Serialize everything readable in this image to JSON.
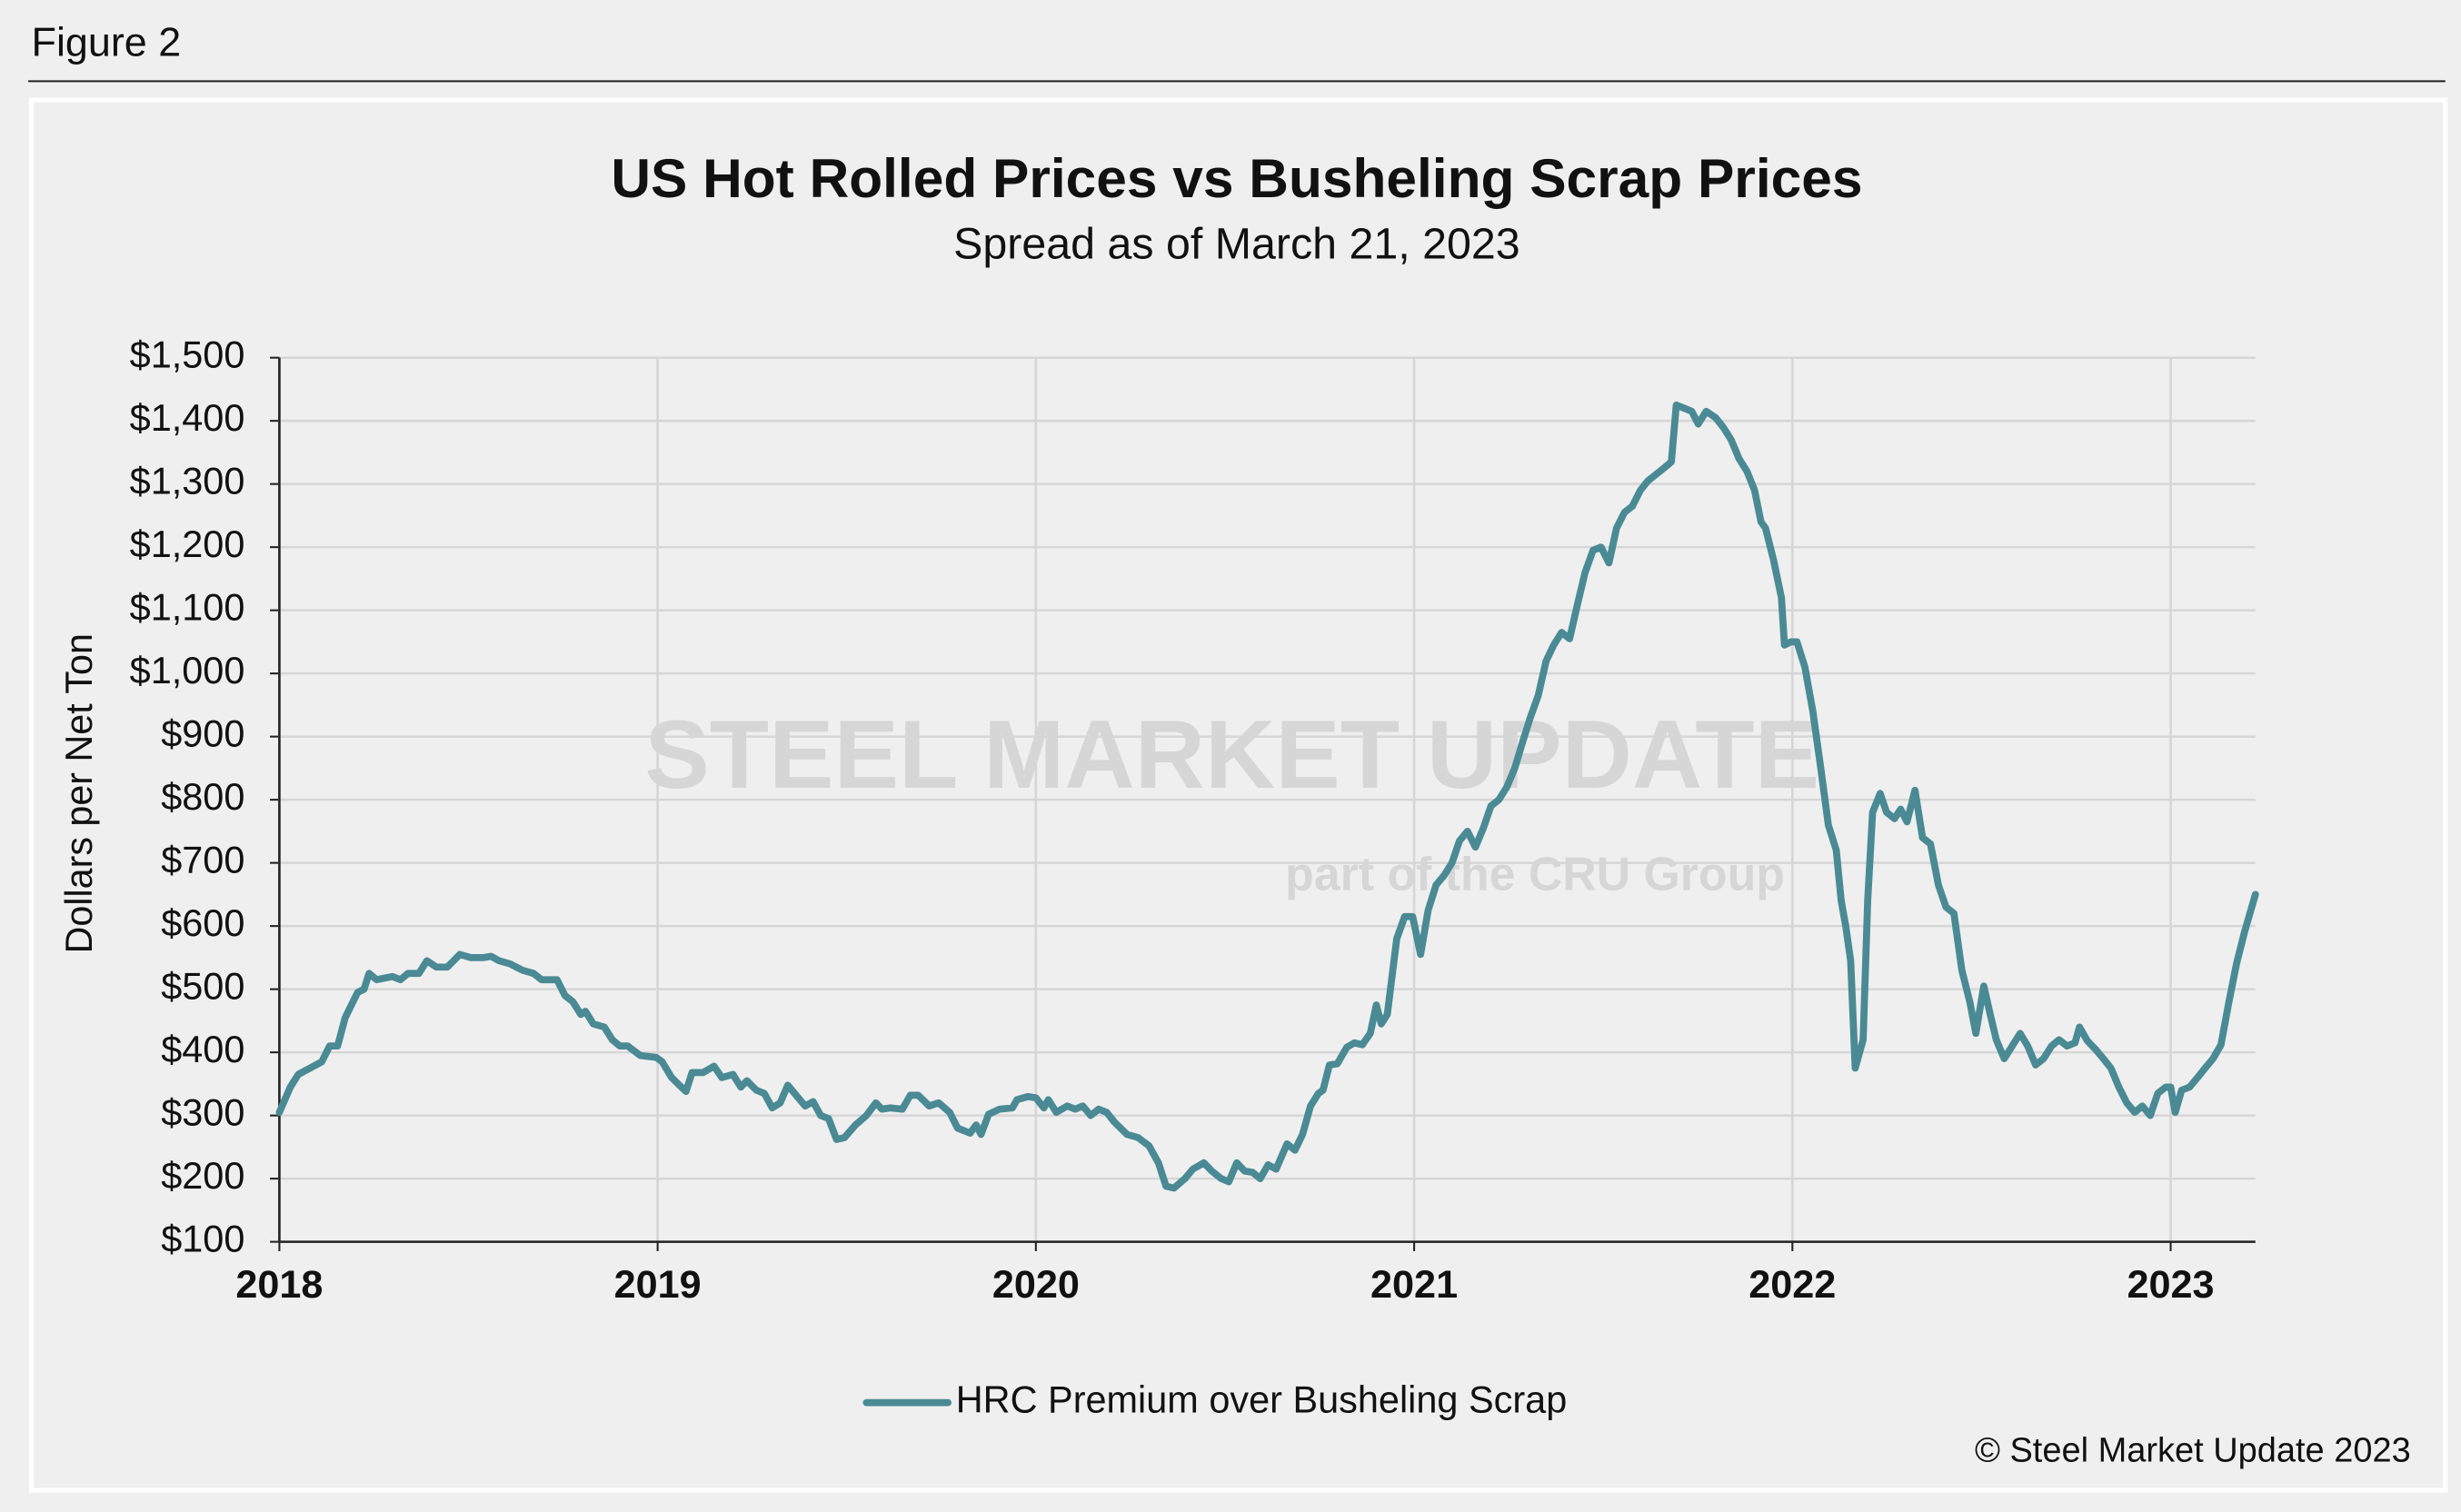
{
  "figure_label": "Figure 2",
  "copyright": "© Steel Market Update 2023",
  "watermark": {
    "brand": "STEEL MARKET UPDATE",
    "tagline": "part of the CRU Group"
  },
  "chart_data": {
    "type": "line",
    "title": "US Hot Rolled Prices vs Busheling Scrap Prices",
    "subtitle": "Spread as of March 21, 2023",
    "y_label": "Dollars per Net Ton",
    "xlim": [
      2018,
      2023.224
    ],
    "xticks": [
      2018,
      2019,
      2020,
      2021,
      2022,
      2023
    ],
    "ylim": [
      100,
      1500
    ],
    "yticks": [
      {
        "value": 100,
        "label": "$100"
      },
      {
        "value": 200,
        "label": "$200"
      },
      {
        "value": 300,
        "label": "$300"
      },
      {
        "value": 400,
        "label": "$400"
      },
      {
        "value": 500,
        "label": "$500"
      },
      {
        "value": 600,
        "label": "$600"
      },
      {
        "value": 700,
        "label": "$700"
      },
      {
        "value": 800,
        "label": "$800"
      },
      {
        "value": 900,
        "label": "$900"
      },
      {
        "value": 1000,
        "label": "$1,000"
      },
      {
        "value": 1100,
        "label": "$1,100"
      },
      {
        "value": 1200,
        "label": "$1,200"
      },
      {
        "value": 1300,
        "label": "$1,300"
      },
      {
        "value": 1400,
        "label": "$1,400"
      },
      {
        "value": 1500,
        "label": "$1,500"
      }
    ],
    "grid": true,
    "legend": "bottom",
    "x": [
      2018,
      2018.029,
      2018.05,
      2018.112,
      2018.133,
      2018.154,
      2018.174,
      2018.207,
      2018.224,
      2018.237,
      2018.257,
      2018.299,
      2018.32,
      2018.34,
      2018.369,
      2018.39,
      2018.415,
      2018.444,
      2018.477,
      2018.506,
      2018.539,
      2018.56,
      2018.581,
      2018.61,
      2018.643,
      2018.672,
      2018.693,
      2018.734,
      2018.755,
      2018.776,
      2018.797,
      2018.809,
      2018.83,
      2018.859,
      2018.88,
      2018.9,
      2018.921,
      2018.954,
      2018.996,
      2019.012,
      2019.037,
      2019.054,
      2019.075,
      2019.091,
      2019.12,
      2019.149,
      2019.17,
      2019.199,
      2019.22,
      2019.236,
      2019.261,
      2019.282,
      2019.303,
      2019.324,
      2019.344,
      2019.369,
      2019.39,
      2019.411,
      2019.431,
      2019.452,
      2019.473,
      2019.494,
      2019.523,
      2019.552,
      2019.577,
      2019.593,
      2019.614,
      2019.647,
      2019.668,
      2019.689,
      2019.718,
      2019.743,
      2019.772,
      2019.793,
      2019.826,
      2019.842,
      2019.855,
      2019.875,
      2019.904,
      2019.938,
      2019.95,
      2019.979,
      2020,
      2020.021,
      2020.033,
      2020.054,
      2020.083,
      2020.104,
      2020.124,
      2020.145,
      2020.166,
      2020.187,
      2020.207,
      2020.241,
      2020.27,
      2020.299,
      2020.324,
      2020.344,
      2020.365,
      2020.394,
      2020.415,
      2020.444,
      2020.465,
      2020.49,
      2020.51,
      2020.531,
      2020.552,
      2020.573,
      2020.593,
      2020.614,
      2020.635,
      2020.664,
      2020.685,
      2020.705,
      2020.726,
      2020.747,
      2020.759,
      2020.776,
      2020.797,
      2020.822,
      2020.842,
      2020.863,
      2020.884,
      2020.9,
      2020.913,
      2020.929,
      2020.954,
      2020.975,
      2020.996,
      2021.017,
      2021.037,
      2021.058,
      2021.079,
      2021.1,
      2021.12,
      2021.141,
      2021.162,
      2021.183,
      2021.203,
      2021.224,
      2021.245,
      2021.266,
      2021.286,
      2021.307,
      2021.328,
      2021.349,
      2021.369,
      2021.39,
      2021.411,
      2021.432,
      2021.452,
      2021.473,
      2021.494,
      2021.515,
      2021.535,
      2021.556,
      2021.577,
      2021.598,
      2021.618,
      2021.639,
      2021.66,
      2021.68,
      2021.693,
      2021.714,
      2021.734,
      2021.751,
      2021.772,
      2021.797,
      2021.817,
      2021.838,
      2021.859,
      2021.88,
      2021.9,
      2021.917,
      2021.929,
      2021.95,
      2021.971,
      2021.979,
      2021.996,
      2022.012,
      2022.033,
      2022.054,
      2022.075,
      2022.095,
      2022.116,
      2022.129,
      2022.141,
      2022.154,
      2022.166,
      2022.187,
      2022.199,
      2022.212,
      2022.232,
      2022.249,
      2022.27,
      2022.286,
      2022.303,
      2022.324,
      2022.344,
      2022.365,
      2022.386,
      2022.406,
      2022.427,
      2022.448,
      2022.469,
      2022.485,
      2022.506,
      2022.523,
      2022.539,
      2022.56,
      2022.581,
      2022.602,
      2022.622,
      2022.643,
      2022.664,
      2022.685,
      2022.705,
      2022.726,
      2022.747,
      2022.759,
      2022.78,
      2022.801,
      2022.822,
      2022.842,
      2022.863,
      2022.884,
      2022.905,
      2022.925,
      2022.946,
      2022.966,
      2022.987,
      2023,
      2023.012,
      2023.029,
      2023.05,
      2023.071,
      2023.091,
      2023.112,
      2023.133,
      2023.154,
      2023.174,
      2023.195,
      2023.224
    ],
    "series": [
      {
        "name": "HRC Premium over Busheling Scrap",
        "color": "#4a8a94",
        "values": [
          305,
          345,
          365,
          385,
          410,
          410,
          455,
          495,
          500,
          525,
          515,
          520,
          515,
          525,
          525,
          545,
          535,
          535,
          555,
          550,
          550,
          552,
          545,
          540,
          530,
          525,
          515,
          515,
          490,
          480,
          460,
          465,
          445,
          440,
          420,
          410,
          410,
          395,
          392,
          385,
          360,
          350,
          338,
          368,
          368,
          378,
          360,
          365,
          345,
          355,
          340,
          335,
          312,
          320,
          348,
          330,
          315,
          322,
          300,
          295,
          262,
          265,
          285,
          300,
          320,
          310,
          312,
          310,
          332,
          332,
          315,
          320,
          305,
          280,
          272,
          285,
          270,
          302,
          310,
          312,
          325,
          330,
          328,
          312,
          325,
          305,
          315,
          310,
          315,
          300,
          310,
          305,
          290,
          270,
          265,
          252,
          225,
          188,
          185,
          200,
          215,
          225,
          212,
          200,
          195,
          225,
          212,
          210,
          200,
          222,
          215,
          255,
          245,
          270,
          315,
          335,
          340,
          380,
          382,
          408,
          415,
          412,
          430,
          475,
          445,
          460,
          580,
          615,
          615,
          555,
          625,
          665,
          680,
          700,
          735,
          750,
          725,
          755,
          790,
          800,
          820,
          850,
          890,
          930,
          965,
          1020,
          1045,
          1065,
          1055,
          1110,
          1160,
          1195,
          1200,
          1175,
          1230,
          1255,
          1265,
          1290,
          1305,
          1315,
          1325,
          1335,
          1425,
          1420,
          1415,
          1395,
          1415,
          1405,
          1390,
          1370,
          1340,
          1320,
          1290,
          1240,
          1230,
          1180,
          1120,
          1045,
          1050,
          1050,
          1010,
          940,
          850,
          760,
          720,
          640,
          600,
          545,
          375,
          420,
          640,
          780,
          810,
          780,
          770,
          785,
          765,
          815,
          740,
          730,
          665,
          630,
          620,
          530,
          480,
          430,
          505,
          460,
          420,
          390,
          410,
          430,
          410,
          380,
          390,
          410,
          420,
          410,
          415,
          440,
          418,
          405,
          390,
          375,
          345,
          320,
          305,
          315,
          300,
          335,
          345,
          345,
          305,
          340,
          345,
          360,
          375,
          390,
          412,
          480,
          540,
          590,
          650
        ]
      }
    ]
  }
}
